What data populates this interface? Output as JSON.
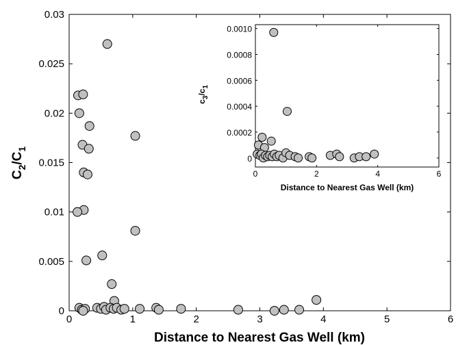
{
  "chart_data": [
    {
      "type": "scatter",
      "panel": "main",
      "xlabel": "Distance to Nearest Gas Well (km)",
      "ylabel_main": "C",
      "ylabel_sub_a": "2",
      "ylabel_slash": "/C",
      "ylabel_sub_b": "1",
      "xlim": [
        0,
        6
      ],
      "ylim": [
        0,
        0.03
      ],
      "xticks": [
        0,
        1,
        2,
        3,
        4,
        5,
        6
      ],
      "yticks": [
        0,
        0.005,
        0.01,
        0.015,
        0.02,
        0.025,
        0.03
      ],
      "xtick_labels": [
        "0",
        "1",
        "2",
        "3",
        "4",
        "5",
        "6"
      ],
      "ytick_labels": [
        "0",
        "0.005",
        "0.01",
        "0.015",
        "0.02",
        "0.025",
        "0.03"
      ],
      "grid": false,
      "marker_color": "#c0c0c0",
      "points": [
        {
          "x": 0.6,
          "y": 0.027
        },
        {
          "x": 0.14,
          "y": 0.0218
        },
        {
          "x": 0.22,
          "y": 0.0219
        },
        {
          "x": 0.16,
          "y": 0.02
        },
        {
          "x": 0.32,
          "y": 0.0187
        },
        {
          "x": 1.04,
          "y": 0.0177
        },
        {
          "x": 0.21,
          "y": 0.0168
        },
        {
          "x": 0.31,
          "y": 0.0164
        },
        {
          "x": 0.23,
          "y": 0.014
        },
        {
          "x": 0.29,
          "y": 0.0138
        },
        {
          "x": 0.23,
          "y": 0.0102
        },
        {
          "x": 0.13,
          "y": 0.01
        },
        {
          "x": 1.04,
          "y": 0.0081
        },
        {
          "x": 0.52,
          "y": 0.0056
        },
        {
          "x": 0.27,
          "y": 0.0051
        },
        {
          "x": 0.67,
          "y": 0.0027
        },
        {
          "x": 3.89,
          "y": 0.0011
        },
        {
          "x": 0.71,
          "y": 0.001
        },
        {
          "x": 0.16,
          "y": 0.0003
        },
        {
          "x": 0.2,
          "y": 0.0001
        },
        {
          "x": 0.25,
          "y": 0.0002
        },
        {
          "x": 0.22,
          "y": 0.0
        },
        {
          "x": 0.44,
          "y": 0.0003
        },
        {
          "x": 0.5,
          "y": 0.0002
        },
        {
          "x": 0.55,
          "y": 0.0004
        },
        {
          "x": 0.58,
          "y": 0.0001
        },
        {
          "x": 0.65,
          "y": 0.0003
        },
        {
          "x": 0.7,
          "y": 0.0002
        },
        {
          "x": 0.75,
          "y": 0.0003
        },
        {
          "x": 0.82,
          "y": 0.0001
        },
        {
          "x": 0.87,
          "y": 0.0002
        },
        {
          "x": 1.11,
          "y": 0.0002
        },
        {
          "x": 1.37,
          "y": 0.0003
        },
        {
          "x": 1.41,
          "y": 0.0001
        },
        {
          "x": 1.76,
          "y": 0.0002
        },
        {
          "x": 2.66,
          "y": 0.0001
        },
        {
          "x": 3.23,
          "y": 0.0
        },
        {
          "x": 3.38,
          "y": 0.0001
        },
        {
          "x": 3.62,
          "y": 0.0001
        }
      ]
    },
    {
      "type": "scatter",
      "panel": "inset",
      "xlabel": "Distance to Nearest Gas Well (km)",
      "ylabel_main": "c",
      "ylabel_sub_a": "3",
      "ylabel_slash": "/c",
      "ylabel_sub_b": "1",
      "xlim": [
        0,
        6
      ],
      "ylim": [
        -7e-05,
        0.00103
      ],
      "xticks": [
        0,
        2,
        4,
        6
      ],
      "yticks": [
        0,
        0.0002,
        0.0004,
        0.0006,
        0.0008,
        0.001
      ],
      "xtick_labels": [
        "0",
        "2",
        "4",
        "6"
      ],
      "ytick_labels": [
        "0",
        "0.0002",
        "0.0004",
        "0.0006",
        "0.0008",
        "0.0010"
      ],
      "grid": false,
      "marker_color": "#c0c0c0",
      "points": [
        {
          "x": 0.6,
          "y": 0.00097
        },
        {
          "x": 1.04,
          "y": 0.00036
        },
        {
          "x": 0.22,
          "y": 0.00016
        },
        {
          "x": 0.52,
          "y": 0.00013
        },
        {
          "x": 0.1,
          "y": 0.0001
        },
        {
          "x": 0.3,
          "y": 8e-05
        },
        {
          "x": 0.06,
          "y": 3e-05
        },
        {
          "x": 0.15,
          "y": 2e-05
        },
        {
          "x": 0.2,
          "y": 3e-05
        },
        {
          "x": 0.26,
          "y": 0.0
        },
        {
          "x": 0.33,
          "y": 2e-05
        },
        {
          "x": 0.4,
          "y": 1e-05
        },
        {
          "x": 0.47,
          "y": 2e-05
        },
        {
          "x": 0.55,
          "y": 1e-05
        },
        {
          "x": 0.62,
          "y": 3e-05
        },
        {
          "x": 0.7,
          "y": 1e-05
        },
        {
          "x": 0.78,
          "y": 2e-05
        },
        {
          "x": 0.9,
          "y": 0.0
        },
        {
          "x": 1.0,
          "y": 4e-05
        },
        {
          "x": 1.12,
          "y": 2e-05
        },
        {
          "x": 1.3,
          "y": 1e-05
        },
        {
          "x": 1.4,
          "y": 0.0
        },
        {
          "x": 1.76,
          "y": 1e-05
        },
        {
          "x": 1.85,
          "y": 0.0
        },
        {
          "x": 2.45,
          "y": 2e-05
        },
        {
          "x": 2.66,
          "y": 3e-05
        },
        {
          "x": 2.75,
          "y": 1e-05
        },
        {
          "x": 3.23,
          "y": 0.0
        },
        {
          "x": 3.4,
          "y": 1e-05
        },
        {
          "x": 3.62,
          "y": 1e-05
        },
        {
          "x": 3.89,
          "y": 3e-05
        }
      ]
    }
  ]
}
